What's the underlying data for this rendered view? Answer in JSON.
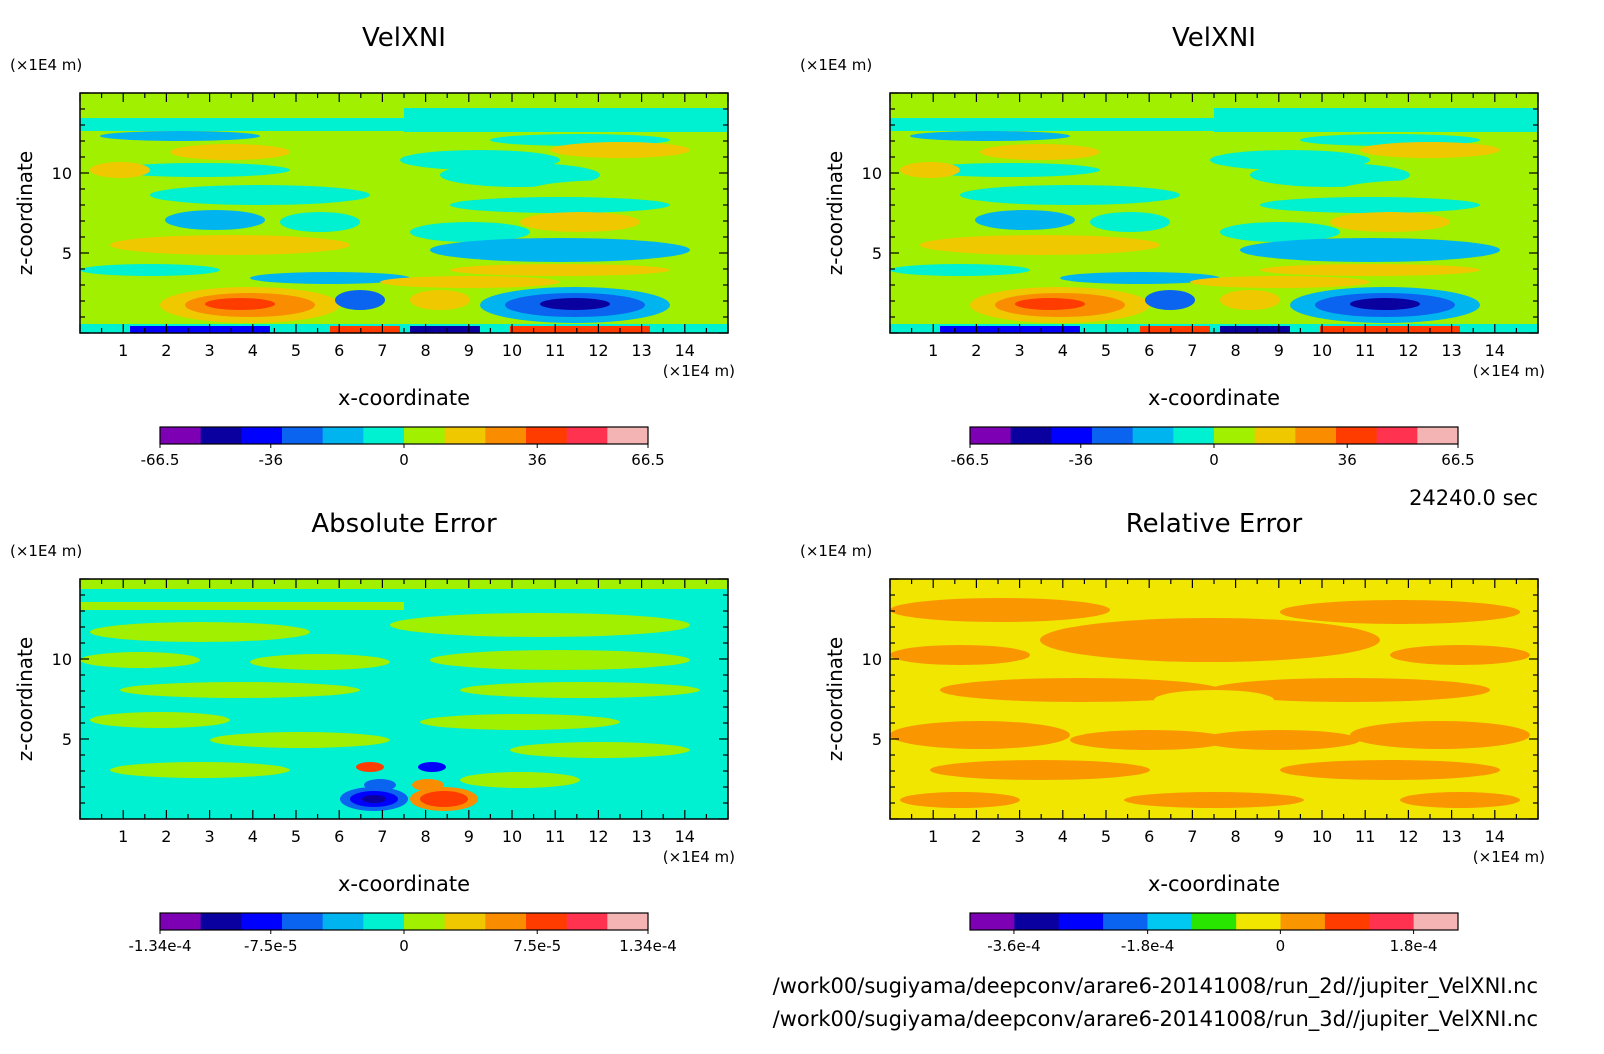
{
  "time_label": "24240.0 sec",
  "file_paths": [
    "/work00/sugiyama/deepconv/arare6-20141008/run_2d//jupiter_VelXNI.nc",
    "/work00/sugiyama/deepconv/arare6-20141008/run_3d//jupiter_VelXNI.nc"
  ],
  "chart_data": [
    {
      "type": "heatmap",
      "title": "VelXNI",
      "xlabel": "x-coordinate",
      "ylabel": "z-coordinate",
      "x_unit": "(×1E4 m)",
      "y_unit": "(×1E4 m)",
      "xlim": [
        0,
        15
      ],
      "ylim": [
        0,
        15
      ],
      "x_ticks": [
        "1",
        "2",
        "3",
        "4",
        "5",
        "6",
        "7",
        "8",
        "9",
        "10",
        "11",
        "12",
        "13",
        "14"
      ],
      "y_ticks": [
        "5",
        "10"
      ],
      "colorbar": {
        "colors": [
          "#7d00b4",
          "#0a00a0",
          "#0000ff",
          "#0a64f0",
          "#00b4f0",
          "#00f0d2",
          "#a0f000",
          "#f0c800",
          "#fa8c00",
          "#ff3c00",
          "#ff3250",
          "#f5b4b4"
        ],
        "tick_labels": [
          "-66.5",
          "-36",
          "0",
          "36",
          "66.5"
        ]
      }
    },
    {
      "type": "heatmap",
      "title": "VelXNI",
      "xlabel": "x-coordinate",
      "ylabel": "z-coordinate",
      "x_unit": "(×1E4 m)",
      "y_unit": "(×1E4 m)",
      "xlim": [
        0,
        15
      ],
      "ylim": [
        0,
        15
      ],
      "x_ticks": [
        "1",
        "2",
        "3",
        "4",
        "5",
        "6",
        "7",
        "8",
        "9",
        "10",
        "11",
        "12",
        "13",
        "14"
      ],
      "y_ticks": [
        "5",
        "10"
      ],
      "colorbar": {
        "colors": [
          "#7d00b4",
          "#0a00a0",
          "#0000ff",
          "#0a64f0",
          "#00b4f0",
          "#00f0d2",
          "#a0f000",
          "#f0c800",
          "#fa8c00",
          "#ff3c00",
          "#ff3250",
          "#f5b4b4"
        ],
        "tick_labels": [
          "-66.5",
          "-36",
          "0",
          "36",
          "66.5"
        ]
      }
    },
    {
      "type": "heatmap",
      "title": "Absolute Error",
      "xlabel": "x-coordinate",
      "ylabel": "z-coordinate",
      "x_unit": "(×1E4 m)",
      "y_unit": "(×1E4 m)",
      "xlim": [
        0,
        15
      ],
      "ylim": [
        0,
        15
      ],
      "x_ticks": [
        "1",
        "2",
        "3",
        "4",
        "5",
        "6",
        "7",
        "8",
        "9",
        "10",
        "11",
        "12",
        "13",
        "14"
      ],
      "y_ticks": [
        "5",
        "10"
      ],
      "colorbar": {
        "colors": [
          "#7d00b4",
          "#0a00a0",
          "#0000ff",
          "#0a64f0",
          "#00b4f0",
          "#00f0d2",
          "#a0f000",
          "#f0c800",
          "#fa8c00",
          "#ff3c00",
          "#ff3250",
          "#f5b4b4"
        ],
        "tick_labels": [
          "-1.34e-4",
          "-7.5e-5",
          "0",
          "7.5e-5",
          "1.34e-4"
        ]
      }
    },
    {
      "type": "heatmap",
      "title": "Relative Error",
      "xlabel": "x-coordinate",
      "ylabel": "z-coordinate",
      "x_unit": "(×1E4 m)",
      "y_unit": "(×1E4 m)",
      "xlim": [
        0,
        15
      ],
      "ylim": [
        0,
        15
      ],
      "x_ticks": [
        "1",
        "2",
        "3",
        "4",
        "5",
        "6",
        "7",
        "8",
        "9",
        "10",
        "11",
        "12",
        "13",
        "14"
      ],
      "y_ticks": [
        "5",
        "10"
      ],
      "colorbar": {
        "colors": [
          "#7d00b4",
          "#0a00a0",
          "#0000ff",
          "#0a64f0",
          "#00c8f0",
          "#28e600",
          "#f0e600",
          "#fa9600",
          "#ff3c00",
          "#ff3250",
          "#f5b4b4"
        ],
        "tick_labels": [
          "-3.6e-4",
          "-1.8e-4",
          "0",
          "1.8e-4"
        ]
      }
    }
  ]
}
